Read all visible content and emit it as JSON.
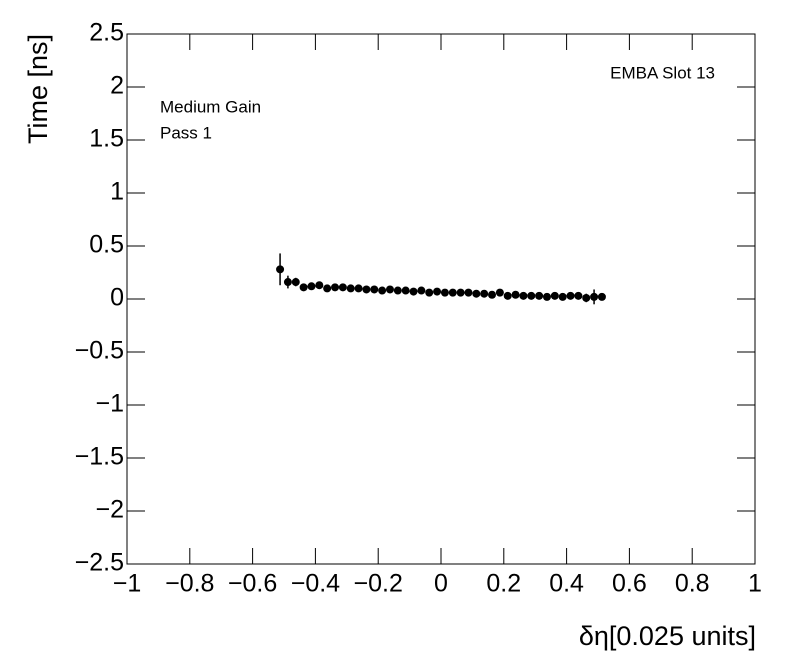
{
  "chart_data": {
    "type": "scatter",
    "x_label": "δη[0.025 units]",
    "y_label": "Time [ns]",
    "annotations": [
      "EMBA Slot 13",
      "Medium Gain",
      "Pass 1"
    ],
    "color": "#000000",
    "x": [
      -0.5125,
      -0.4875,
      -0.4625,
      -0.4375,
      -0.4125,
      -0.3875,
      -0.3625,
      -0.3375,
      -0.3125,
      -0.2875,
      -0.2625,
      -0.2375,
      -0.2125,
      -0.1875,
      -0.1625,
      -0.1375,
      -0.1125,
      -0.0875,
      -0.0625,
      -0.0375,
      -0.0125,
      0.0125,
      0.0375,
      0.0625,
      0.0875,
      0.1125,
      0.1375,
      0.1625,
      0.1875,
      0.2125,
      0.2375,
      0.2625,
      0.2875,
      0.3125,
      0.3375,
      0.3625,
      0.3875,
      0.4125,
      0.4375,
      0.4625,
      0.4875,
      0.5125
    ],
    "series": [
      {
        "values": [
          0.28,
          0.16,
          0.16,
          0.11,
          0.12,
          0.13,
          0.1,
          0.11,
          0.11,
          0.1,
          0.1,
          0.09,
          0.09,
          0.08,
          0.09,
          0.08,
          0.08,
          0.07,
          0.08,
          0.06,
          0.07,
          0.06,
          0.06,
          0.06,
          0.06,
          0.05,
          0.05,
          0.04,
          0.06,
          0.03,
          0.04,
          0.03,
          0.03,
          0.03,
          0.02,
          0.03,
          0.02,
          0.03,
          0.03,
          0.01,
          0.02,
          0.02
        ],
        "errors": [
          0.15,
          0.06,
          0.04,
          0.03,
          0.02,
          0.02,
          0.02,
          0.02,
          0.02,
          0.02,
          0.02,
          0.02,
          0.02,
          0.02,
          0.02,
          0.02,
          0.02,
          0.02,
          0.02,
          0.02,
          0.02,
          0.02,
          0.02,
          0.02,
          0.02,
          0.02,
          0.02,
          0.02,
          0.02,
          0.02,
          0.02,
          0.02,
          0.02,
          0.02,
          0.02,
          0.02,
          0.02,
          0.02,
          0.03,
          0.04,
          0.07,
          0.02
        ]
      }
    ],
    "xlim": [
      -1,
      1
    ],
    "ylim": [
      -2.5,
      2.5
    ],
    "xticks": [
      {
        "value": -1,
        "label": "−1"
      },
      {
        "value": -0.8,
        "label": "−0.8"
      },
      {
        "value": -0.6,
        "label": "−0.6"
      },
      {
        "value": -0.4,
        "label": "−0.4"
      },
      {
        "value": -0.2,
        "label": "−0.2"
      },
      0,
      0.2,
      0.4,
      0.6,
      0.8,
      1
    ],
    "yticks": [
      {
        "value": -2.5,
        "label": "−2.5"
      },
      {
        "value": -2,
        "label": "−2"
      },
      {
        "value": -1.5,
        "label": "−1.5"
      },
      {
        "value": -1,
        "label": "−1"
      },
      {
        "value": -0.5,
        "label": "−0.5"
      },
      0,
      0.5,
      1,
      1.5,
      2,
      2.5
    ]
  }
}
